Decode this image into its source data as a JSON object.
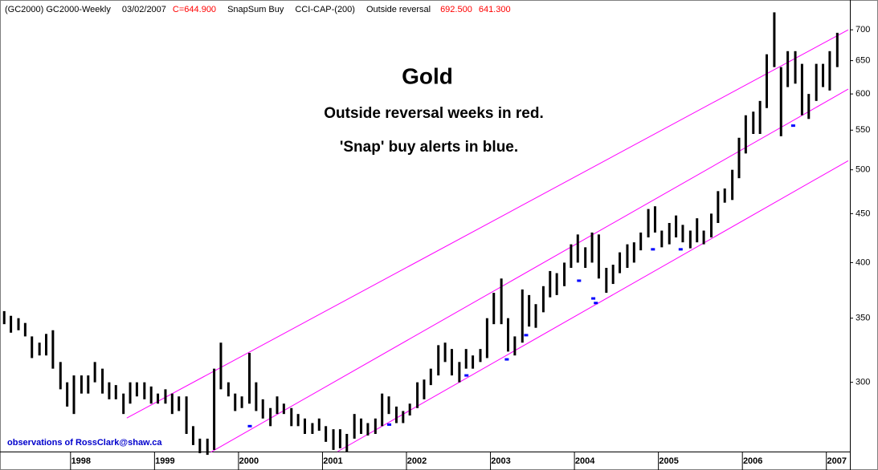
{
  "chart_data": {
    "type": "range-bar",
    "header": [
      {
        "text": "(GC2000) GC2000-Weekly",
        "color": "#000000"
      },
      {
        "text": "03/02/2007",
        "color": "#000000"
      },
      {
        "text": "C=644.900",
        "color": "#ff0000"
      },
      {
        "text": "SnapSum Buy",
        "color": "#000000"
      },
      {
        "text": "CCI-CAP-(200)",
        "color": "#000000"
      },
      {
        "text": "Outside reversal",
        "color": "#000000"
      },
      {
        "text": "692.500",
        "color": "#ff0000"
      },
      {
        "text": "641.300",
        "color": "#ff0000"
      }
    ],
    "title": "Gold",
    "subtitles": [
      "Outside reversal weeks in red.",
      "'Snap' buy alerts in blue."
    ],
    "footer": "observations of RossClark@shaw.ca",
    "log_scale": true,
    "xlim": [
      1997.16,
      2007.28
    ],
    "xticks": [
      1998,
      1999,
      2000,
      2001,
      2002,
      2003,
      2004,
      2005,
      2006,
      2007
    ],
    "ylim": [
      254,
      752
    ],
    "yticks": [
      300,
      350,
      400,
      450,
      500,
      550,
      600,
      650,
      700
    ],
    "bar_color": "#000000",
    "x": [
      1997.21,
      1997.29,
      1997.38,
      1997.46,
      1997.54,
      1997.63,
      1997.71,
      1997.79,
      1997.88,
      1997.96,
      1998.04,
      1998.13,
      1998.21,
      1998.29,
      1998.38,
      1998.46,
      1998.54,
      1998.63,
      1998.71,
      1998.79,
      1998.88,
      1998.96,
      1999.04,
      1999.13,
      1999.21,
      1999.29,
      1999.38,
      1999.46,
      1999.54,
      1999.63,
      1999.71,
      1999.79,
      1999.88,
      1999.96,
      2000.04,
      2000.13,
      2000.21,
      2000.29,
      2000.38,
      2000.46,
      2000.54,
      2000.63,
      2000.71,
      2000.79,
      2000.88,
      2000.96,
      2001.04,
      2001.13,
      2001.21,
      2001.29,
      2001.38,
      2001.46,
      2001.54,
      2001.63,
      2001.71,
      2001.79,
      2001.88,
      2001.96,
      2002.04,
      2002.13,
      2002.21,
      2002.29,
      2002.38,
      2002.46,
      2002.54,
      2002.63,
      2002.71,
      2002.79,
      2002.88,
      2002.96,
      2003.04,
      2003.13,
      2003.21,
      2003.29,
      2003.38,
      2003.46,
      2003.54,
      2003.63,
      2003.71,
      2003.79,
      2003.88,
      2003.96,
      2004.04,
      2004.13,
      2004.21,
      2004.29,
      2004.38,
      2004.46,
      2004.54,
      2004.63,
      2004.71,
      2004.79,
      2004.88,
      2004.96,
      2005.04,
      2005.13,
      2005.21,
      2005.29,
      2005.38,
      2005.46,
      2005.54,
      2005.63,
      2005.71,
      2005.79,
      2005.88,
      2005.96,
      2006.04,
      2006.13,
      2006.21,
      2006.29,
      2006.38,
      2006.46,
      2006.54,
      2006.63,
      2006.71,
      2006.79,
      2006.88,
      2006.96,
      2007.04,
      2007.13
    ],
    "high": [
      356,
      352,
      350,
      346,
      335,
      330,
      337,
      340,
      315,
      300,
      305,
      305,
      305,
      315,
      310,
      300,
      298,
      292,
      300,
      300,
      300,
      297,
      292,
      295,
      292,
      290,
      290,
      270,
      262,
      262,
      310,
      330,
      300,
      292,
      290,
      322,
      300,
      288,
      282,
      290,
      285,
      282,
      278,
      275,
      272,
      275,
      270,
      268,
      268,
      265,
      278,
      275,
      272,
      275,
      292,
      290,
      283,
      280,
      285,
      300,
      302,
      310,
      328,
      330,
      325,
      315,
      325,
      320,
      325,
      350,
      372,
      385,
      350,
      335,
      375,
      370,
      362,
      378,
      392,
      390,
      400,
      418,
      428,
      415,
      430,
      428,
      395,
      398,
      410,
      418,
      420,
      430,
      455,
      458,
      432,
      440,
      448,
      438,
      432,
      445,
      432,
      450,
      475,
      478,
      500,
      540,
      570,
      575,
      590,
      660,
      730,
      640,
      665,
      665,
      645,
      600,
      645,
      645,
      665,
      695
    ],
    "low": [
      345,
      338,
      340,
      335,
      318,
      320,
      320,
      310,
      295,
      283,
      278,
      292,
      292,
      300,
      292,
      288,
      288,
      278,
      285,
      290,
      288,
      285,
      285,
      285,
      278,
      280,
      265,
      258,
      253,
      252,
      255,
      295,
      290,
      280,
      282,
      285,
      280,
      275,
      270,
      278,
      278,
      270,
      270,
      265,
      265,
      267,
      260,
      255,
      256,
      254,
      262,
      265,
      264,
      265,
      270,
      278,
      272,
      272,
      277,
      282,
      288,
      298,
      305,
      315,
      305,
      300,
      310,
      310,
      315,
      318,
      345,
      345,
      323,
      320,
      330,
      343,
      342,
      355,
      368,
      370,
      378,
      395,
      400,
      395,
      400,
      385,
      372,
      380,
      390,
      395,
      400,
      412,
      425,
      430,
      415,
      418,
      425,
      420,
      414,
      420,
      418,
      425,
      440,
      462,
      465,
      490,
      520,
      545,
      545,
      580,
      640,
      542,
      610,
      615,
      570,
      565,
      590,
      610,
      605,
      640
    ],
    "channels": [
      {
        "color": "#ff00ff",
        "x": [
          1998.67,
          2007.26
        ],
        "y": [
          275.3,
          700
        ]
      },
      {
        "color": "#ff00ff",
        "x": [
          1999.67,
          2007.26
        ],
        "y": [
          253.6,
          607
        ]
      },
      {
        "color": "#ff00ff",
        "x": [
          2001.18,
          2007.26
        ],
        "y": [
          254,
          511
        ]
      }
    ],
    "alerts": {
      "color": "#0000ff",
      "x": [
        2000.13,
        2001.79,
        2002.71,
        2003.19,
        2003.42,
        2004.05,
        2004.22,
        2004.25,
        2004.93,
        2005.26,
        2006.6
      ],
      "y": [
        270,
        271,
        305,
        317,
        336,
        383,
        367,
        363,
        413,
        413,
        556
      ]
    }
  }
}
